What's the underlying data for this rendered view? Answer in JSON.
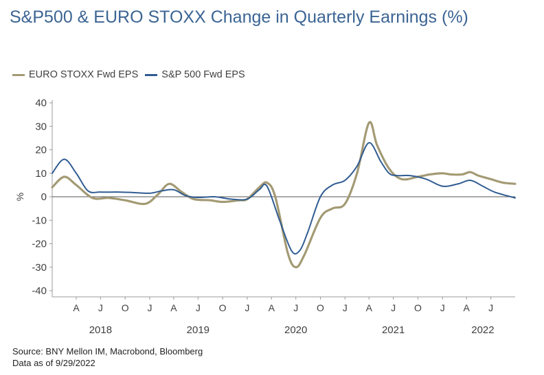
{
  "title": "S&P500 & EURO STOXX Change in Quarterly Earnings (%)",
  "footer": {
    "source": "Source: BNY Mellon IM, Macrobond, Bloomberg",
    "date": "Data as of 9/29/2022"
  },
  "colors": {
    "euro": "#a39a74",
    "sp": "#2f5b91",
    "axis": "#9a9a9a"
  },
  "chart_data": {
    "type": "line",
    "ylabel": "%",
    "ylim": [
      -40,
      40
    ],
    "yticks": [
      -40,
      -30,
      -20,
      -10,
      0,
      10,
      20,
      30,
      40
    ],
    "xlim": [
      "2018-01-01",
      "2022-09-30"
    ],
    "month_ticks": [
      {
        "date": "2018-04-01",
        "label": "A"
      },
      {
        "date": "2018-07-01",
        "label": "J"
      },
      {
        "date": "2018-10-01",
        "label": "O"
      },
      {
        "date": "2019-01-01",
        "label": "J"
      },
      {
        "date": "2019-04-01",
        "label": "A"
      },
      {
        "date": "2019-07-01",
        "label": "J"
      },
      {
        "date": "2019-10-01",
        "label": "O"
      },
      {
        "date": "2020-01-01",
        "label": "J"
      },
      {
        "date": "2020-04-01",
        "label": "A"
      },
      {
        "date": "2020-07-01",
        "label": "J"
      },
      {
        "date": "2020-10-01",
        "label": "O"
      },
      {
        "date": "2021-01-01",
        "label": "J"
      },
      {
        "date": "2021-04-01",
        "label": "A"
      },
      {
        "date": "2021-07-01",
        "label": "J"
      },
      {
        "date": "2021-10-01",
        "label": "O"
      },
      {
        "date": "2022-01-01",
        "label": "J"
      },
      {
        "date": "2022-04-01",
        "label": "A"
      },
      {
        "date": "2022-07-01",
        "label": "J"
      }
    ],
    "year_labels": [
      {
        "date": "2018-07-01",
        "label": "2018"
      },
      {
        "date": "2019-07-01",
        "label": "2019"
      },
      {
        "date": "2020-07-01",
        "label": "2020"
      },
      {
        "date": "2021-07-01",
        "label": "2021"
      },
      {
        "date": "2022-06-01",
        "label": "2022"
      }
    ],
    "legend_position": "top-left",
    "grid": false,
    "series": [
      {
        "name": "EURO STOXX Fwd EPS",
        "color": "#a39a74",
        "points": [
          [
            "2018-01-01",
            4
          ],
          [
            "2018-02-15",
            8.5
          ],
          [
            "2018-04-01",
            5
          ],
          [
            "2018-06-01",
            -0.5
          ],
          [
            "2018-08-01",
            -0.5
          ],
          [
            "2018-10-01",
            -1.5
          ],
          [
            "2018-12-15",
            -3
          ],
          [
            "2019-02-01",
            1
          ],
          [
            "2019-03-15",
            5.5
          ],
          [
            "2019-05-01",
            2
          ],
          [
            "2019-06-15",
            -1
          ],
          [
            "2019-08-15",
            -1.5
          ],
          [
            "2019-10-01",
            -2.2
          ],
          [
            "2019-12-01",
            -1.5
          ],
          [
            "2020-01-01",
            -1
          ],
          [
            "2020-02-15",
            4
          ],
          [
            "2020-03-15",
            6
          ],
          [
            "2020-04-15",
            0
          ],
          [
            "2020-06-01",
            -24
          ],
          [
            "2020-07-01",
            -30
          ],
          [
            "2020-08-01",
            -25
          ],
          [
            "2020-10-01",
            -9
          ],
          [
            "2020-11-15",
            -5
          ],
          [
            "2021-01-01",
            -3
          ],
          [
            "2021-02-15",
            10
          ],
          [
            "2021-04-01",
            31.5
          ],
          [
            "2021-05-01",
            22
          ],
          [
            "2021-06-15",
            12
          ],
          [
            "2021-08-01",
            7.5
          ],
          [
            "2021-10-01",
            8.5
          ],
          [
            "2021-11-15",
            9.5
          ],
          [
            "2021-12-31",
            10
          ],
          [
            "2022-02-01",
            9.5
          ],
          [
            "2022-03-15",
            9.5
          ],
          [
            "2022-04-15",
            10.5
          ],
          [
            "2022-05-15",
            9
          ],
          [
            "2022-07-01",
            7.5
          ],
          [
            "2022-08-15",
            6
          ],
          [
            "2022-09-30",
            5.5
          ]
        ]
      },
      {
        "name": "S&P 500 Fwd EPS",
        "color": "#2f5b91",
        "points": [
          [
            "2018-01-01",
            10
          ],
          [
            "2018-02-15",
            16
          ],
          [
            "2018-04-01",
            10
          ],
          [
            "2018-05-15",
            2.5
          ],
          [
            "2018-07-01",
            2
          ],
          [
            "2018-09-01",
            2
          ],
          [
            "2018-11-01",
            1.8
          ],
          [
            "2019-01-01",
            1.5
          ],
          [
            "2019-02-15",
            2.5
          ],
          [
            "2019-04-01",
            3
          ],
          [
            "2019-05-15",
            0.5
          ],
          [
            "2019-07-01",
            -0.3
          ],
          [
            "2019-09-01",
            0
          ],
          [
            "2019-11-01",
            -1
          ],
          [
            "2020-01-01",
            -1
          ],
          [
            "2020-02-15",
            3
          ],
          [
            "2020-03-15",
            4.5
          ],
          [
            "2020-05-01",
            -10
          ],
          [
            "2020-06-15",
            -23
          ],
          [
            "2020-07-15",
            -23
          ],
          [
            "2020-08-15",
            -15
          ],
          [
            "2020-10-01",
            0
          ],
          [
            "2020-11-15",
            5
          ],
          [
            "2021-01-01",
            7
          ],
          [
            "2021-02-15",
            13
          ],
          [
            "2021-04-01",
            23
          ],
          [
            "2021-05-15",
            15
          ],
          [
            "2021-06-15",
            10
          ],
          [
            "2021-07-15",
            9
          ],
          [
            "2021-09-01",
            9
          ],
          [
            "2021-11-01",
            7.5
          ],
          [
            "2022-01-01",
            4.5
          ],
          [
            "2022-03-01",
            5.5
          ],
          [
            "2022-04-15",
            7
          ],
          [
            "2022-06-01",
            4.5
          ],
          [
            "2022-07-15",
            2
          ],
          [
            "2022-09-30",
            -0.5
          ]
        ]
      }
    ]
  }
}
